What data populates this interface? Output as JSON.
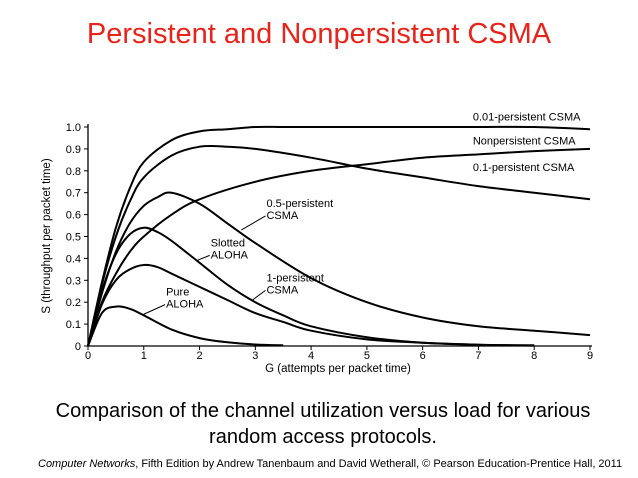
{
  "page_title": "Persistent and Nonpersistent CSMA",
  "caption_line1": "Comparison of the channel utilization versus load for various",
  "caption_line2": "random access protocols.",
  "credit": {
    "book": "Computer Networks",
    "rest": ", Fifth Edition by Andrew Tanenbaum and David Wetherall, © Pearson Education-Prentice Hall, 2011"
  },
  "chart_data": {
    "type": "line",
    "xlabel": "G (attempts per packet time)",
    "ylabel": "S (throughput per packet time)",
    "xlim": [
      0,
      9
    ],
    "ylim": [
      0,
      1.0
    ],
    "xticks": [
      0,
      1,
      2,
      3,
      4,
      5,
      6,
      7,
      8,
      9
    ],
    "yticks": [
      0,
      0.1,
      0.2,
      0.3,
      0.4,
      0.5,
      0.6,
      0.7,
      0.8,
      0.9,
      1.0
    ],
    "ytick_labels": [
      "0",
      "0.1",
      "0.2",
      "0.3",
      "0.4",
      "0.5",
      "0.6",
      "0.7",
      "0.8",
      "0.9",
      "1.0"
    ],
    "grid": false,
    "series": [
      {
        "name": "0.01-persistent CSMA",
        "x": [
          0,
          0.25,
          0.5,
          0.75,
          1,
          1.5,
          2,
          2.5,
          3,
          3.5,
          4,
          5,
          6,
          7,
          8,
          9
        ],
        "y": [
          0,
          0.29,
          0.54,
          0.72,
          0.84,
          0.94,
          0.98,
          0.99,
          1.0,
          1.0,
          1.0,
          1.0,
          1.0,
          1.0,
          1.0,
          0.99
        ]
      },
      {
        "name": "Nonpersistent CSMA",
        "x": [
          0,
          0.25,
          0.5,
          0.75,
          1,
          1.5,
          2,
          3,
          4,
          5,
          6,
          7,
          8,
          9
        ],
        "y": [
          0,
          0.2,
          0.33,
          0.43,
          0.5,
          0.6,
          0.67,
          0.75,
          0.8,
          0.83,
          0.86,
          0.875,
          0.89,
          0.9
        ]
      },
      {
        "name": "0.1-persistent CSMA",
        "x": [
          0,
          0.25,
          0.5,
          0.75,
          1,
          1.5,
          2,
          2.5,
          3,
          4,
          5,
          6,
          7,
          8,
          9
        ],
        "y": [
          0,
          0.28,
          0.5,
          0.66,
          0.77,
          0.87,
          0.91,
          0.91,
          0.9,
          0.86,
          0.81,
          0.77,
          0.73,
          0.7,
          0.67
        ]
      },
      {
        "name": "0.5-persistent CSMA",
        "x": [
          0,
          0.25,
          0.5,
          0.75,
          1,
          1.25,
          1.5,
          2,
          2.5,
          3,
          4,
          5,
          6,
          7,
          8,
          9
        ],
        "y": [
          0,
          0.24,
          0.43,
          0.56,
          0.64,
          0.68,
          0.7,
          0.65,
          0.56,
          0.47,
          0.31,
          0.2,
          0.13,
          0.09,
          0.07,
          0.05
        ]
      },
      {
        "name": "Slotted ALOHA",
        "x": [
          0,
          0.25,
          0.5,
          0.75,
          1,
          1.25,
          1.5,
          2,
          2.5,
          3,
          3.5,
          4,
          5,
          6,
          7,
          8
        ],
        "y": [
          0,
          0.19,
          0.3,
          0.35,
          0.37,
          0.36,
          0.33,
          0.27,
          0.21,
          0.15,
          0.11,
          0.07,
          0.03,
          0.015,
          0.006,
          0.003
        ]
      },
      {
        "name": "1-persistent CSMA",
        "x": [
          0,
          0.25,
          0.5,
          0.75,
          1,
          1.25,
          1.5,
          2,
          2.5,
          3,
          3.5,
          4,
          5,
          6,
          7,
          8
        ],
        "y": [
          0,
          0.25,
          0.42,
          0.51,
          0.54,
          0.52,
          0.48,
          0.38,
          0.28,
          0.2,
          0.14,
          0.09,
          0.04,
          0.015,
          0.006,
          0.002
        ]
      },
      {
        "name": "Pure ALOHA",
        "x": [
          0,
          0.25,
          0.5,
          0.75,
          1,
          1.5,
          2,
          2.5,
          3,
          3.5
        ],
        "y": [
          0,
          0.15,
          0.18,
          0.17,
          0.14,
          0.075,
          0.036,
          0.017,
          0.007,
          0.003
        ]
      }
    ],
    "annotations": [
      {
        "name": "0.01-persistent CSMA",
        "lines": [
          "0.01-persistent CSMA"
        ],
        "x": 6.9,
        "y": 1.03,
        "arrow_to": null
      },
      {
        "name": "Nonpersistent CSMA",
        "lines": [
          "Nonpersistent CSMA"
        ],
        "x": 6.9,
        "y": 0.92,
        "arrow_to": null
      },
      {
        "name": "0.1-persistent CSMA",
        "lines": [
          "0.1-persistent CSMA"
        ],
        "x": 6.9,
        "y": 0.8,
        "arrow_to": null
      },
      {
        "name": "0.5-persistent CSMA",
        "lines": [
          "0.5-persistent",
          "CSMA"
        ],
        "x": 3.2,
        "y": 0.635,
        "arrow_to": [
          2.75,
          0.53
        ]
      },
      {
        "name": "Slotted ALOHA",
        "lines": [
          "Slotted",
          "ALOHA"
        ],
        "x": 2.2,
        "y": 0.455,
        "arrow_to": [
          1.95,
          0.39
        ]
      },
      {
        "name": "1-persistent CSMA",
        "lines": [
          "1-persistent",
          "CSMA"
        ],
        "x": 3.2,
        "y": 0.295,
        "arrow_to": [
          2.95,
          0.21
        ]
      },
      {
        "name": "Pure ALOHA",
        "lines": [
          "Pure",
          "ALOHA"
        ],
        "x": 1.4,
        "y": 0.23,
        "arrow_to": [
          1.0,
          0.145
        ]
      }
    ]
  }
}
